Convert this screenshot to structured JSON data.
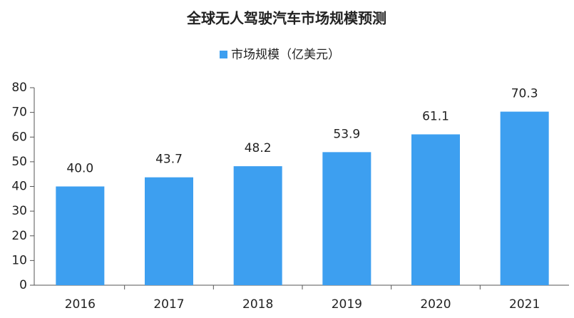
{
  "chart_data": {
    "type": "bar",
    "title": "全球无人驾驶汽车市场规模预测",
    "categories": [
      "2016",
      "2017",
      "2018",
      "2019",
      "2020",
      "2021"
    ],
    "series": [
      {
        "name": "市场规模（亿美元）",
        "color": "#3d9ff0",
        "values": [
          40.0,
          43.7,
          48.2,
          53.9,
          61.1,
          70.3
        ],
        "value_labels": [
          "40.0",
          "43.7",
          "48.2",
          "53.9",
          "61.1",
          "70.3"
        ]
      }
    ],
    "ylim": [
      0,
      80
    ],
    "yticks": [
      0,
      10,
      20,
      30,
      40,
      50,
      60,
      70,
      80
    ],
    "grid": false
  }
}
